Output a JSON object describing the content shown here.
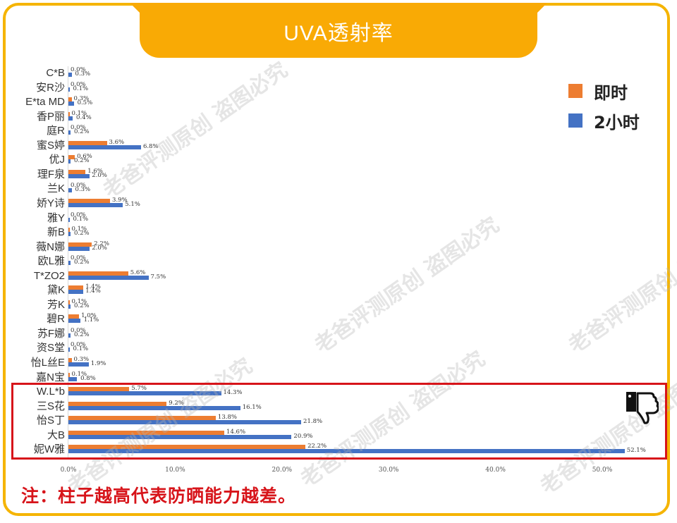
{
  "header": {
    "title": "UVA透射率"
  },
  "legend": {
    "items": [
      {
        "label": "即时",
        "color": "#ed7d31"
      },
      {
        "label": "2小时",
        "color": "#4472c4"
      }
    ]
  },
  "note": "注：柱子越高代表防晒能力越差。",
  "watermark": "老爸评测原创 盗图必究",
  "axis": {
    "ticks": [
      "0.0%",
      "10.0%",
      "20.0%",
      "30.0%",
      "40.0%",
      "50.0%"
    ]
  },
  "chart_data": {
    "type": "bar",
    "orientation": "horizontal",
    "title": "UVA透射率",
    "xlabel": "",
    "ylabel": "",
    "xlim": [
      0,
      55
    ],
    "x_ticks": [
      "0.0%",
      "10.0%",
      "20.0%",
      "30.0%",
      "40.0%",
      "50.0%"
    ],
    "legend_position": "top-right",
    "grid": false,
    "categories": [
      "C*B",
      "安R沙",
      "E*ta MD",
      "香P丽",
      "庭R",
      "蜜S婷",
      "优J",
      "理F泉",
      "兰K",
      "娇Y诗",
      "雅Y",
      "新B",
      "薇N娜",
      "欧L雅",
      "T*ZO2",
      "黛K",
      "芳K",
      "碧R",
      "苏F娜",
      "资S堂",
      "怡L丝E",
      "嘉N宝",
      "W.L*b",
      "三S花",
      "怡S丁",
      "大B",
      "妮W雅"
    ],
    "series": [
      {
        "name": "即时",
        "color": "#ed7d31",
        "values": [
          0.0,
          0.0,
          0.3,
          0.1,
          0.0,
          3.6,
          0.6,
          1.6,
          0.0,
          3.9,
          0.0,
          0.1,
          2.2,
          0.0,
          5.6,
          1.4,
          0.1,
          1.0,
          0.0,
          0.0,
          0.3,
          0.1,
          5.7,
          9.2,
          13.8,
          14.6,
          22.2
        ]
      },
      {
        "name": "2小时",
        "color": "#4472c4",
        "values": [
          0.3,
          0.1,
          0.5,
          0.4,
          0.2,
          6.8,
          0.2,
          2.0,
          0.3,
          5.1,
          0.1,
          0.2,
          2.0,
          0.2,
          7.5,
          1.4,
          0.2,
          1.1,
          0.2,
          0.1,
          1.9,
          0.8,
          14.3,
          16.1,
          21.8,
          20.9,
          52.1
        ]
      }
    ],
    "value_format": "{v}%",
    "annotations": [
      "Bottom five products highlighted with red box and thumbs-down icon",
      "注：柱子越高代表防晒能力越差。"
    ]
  }
}
